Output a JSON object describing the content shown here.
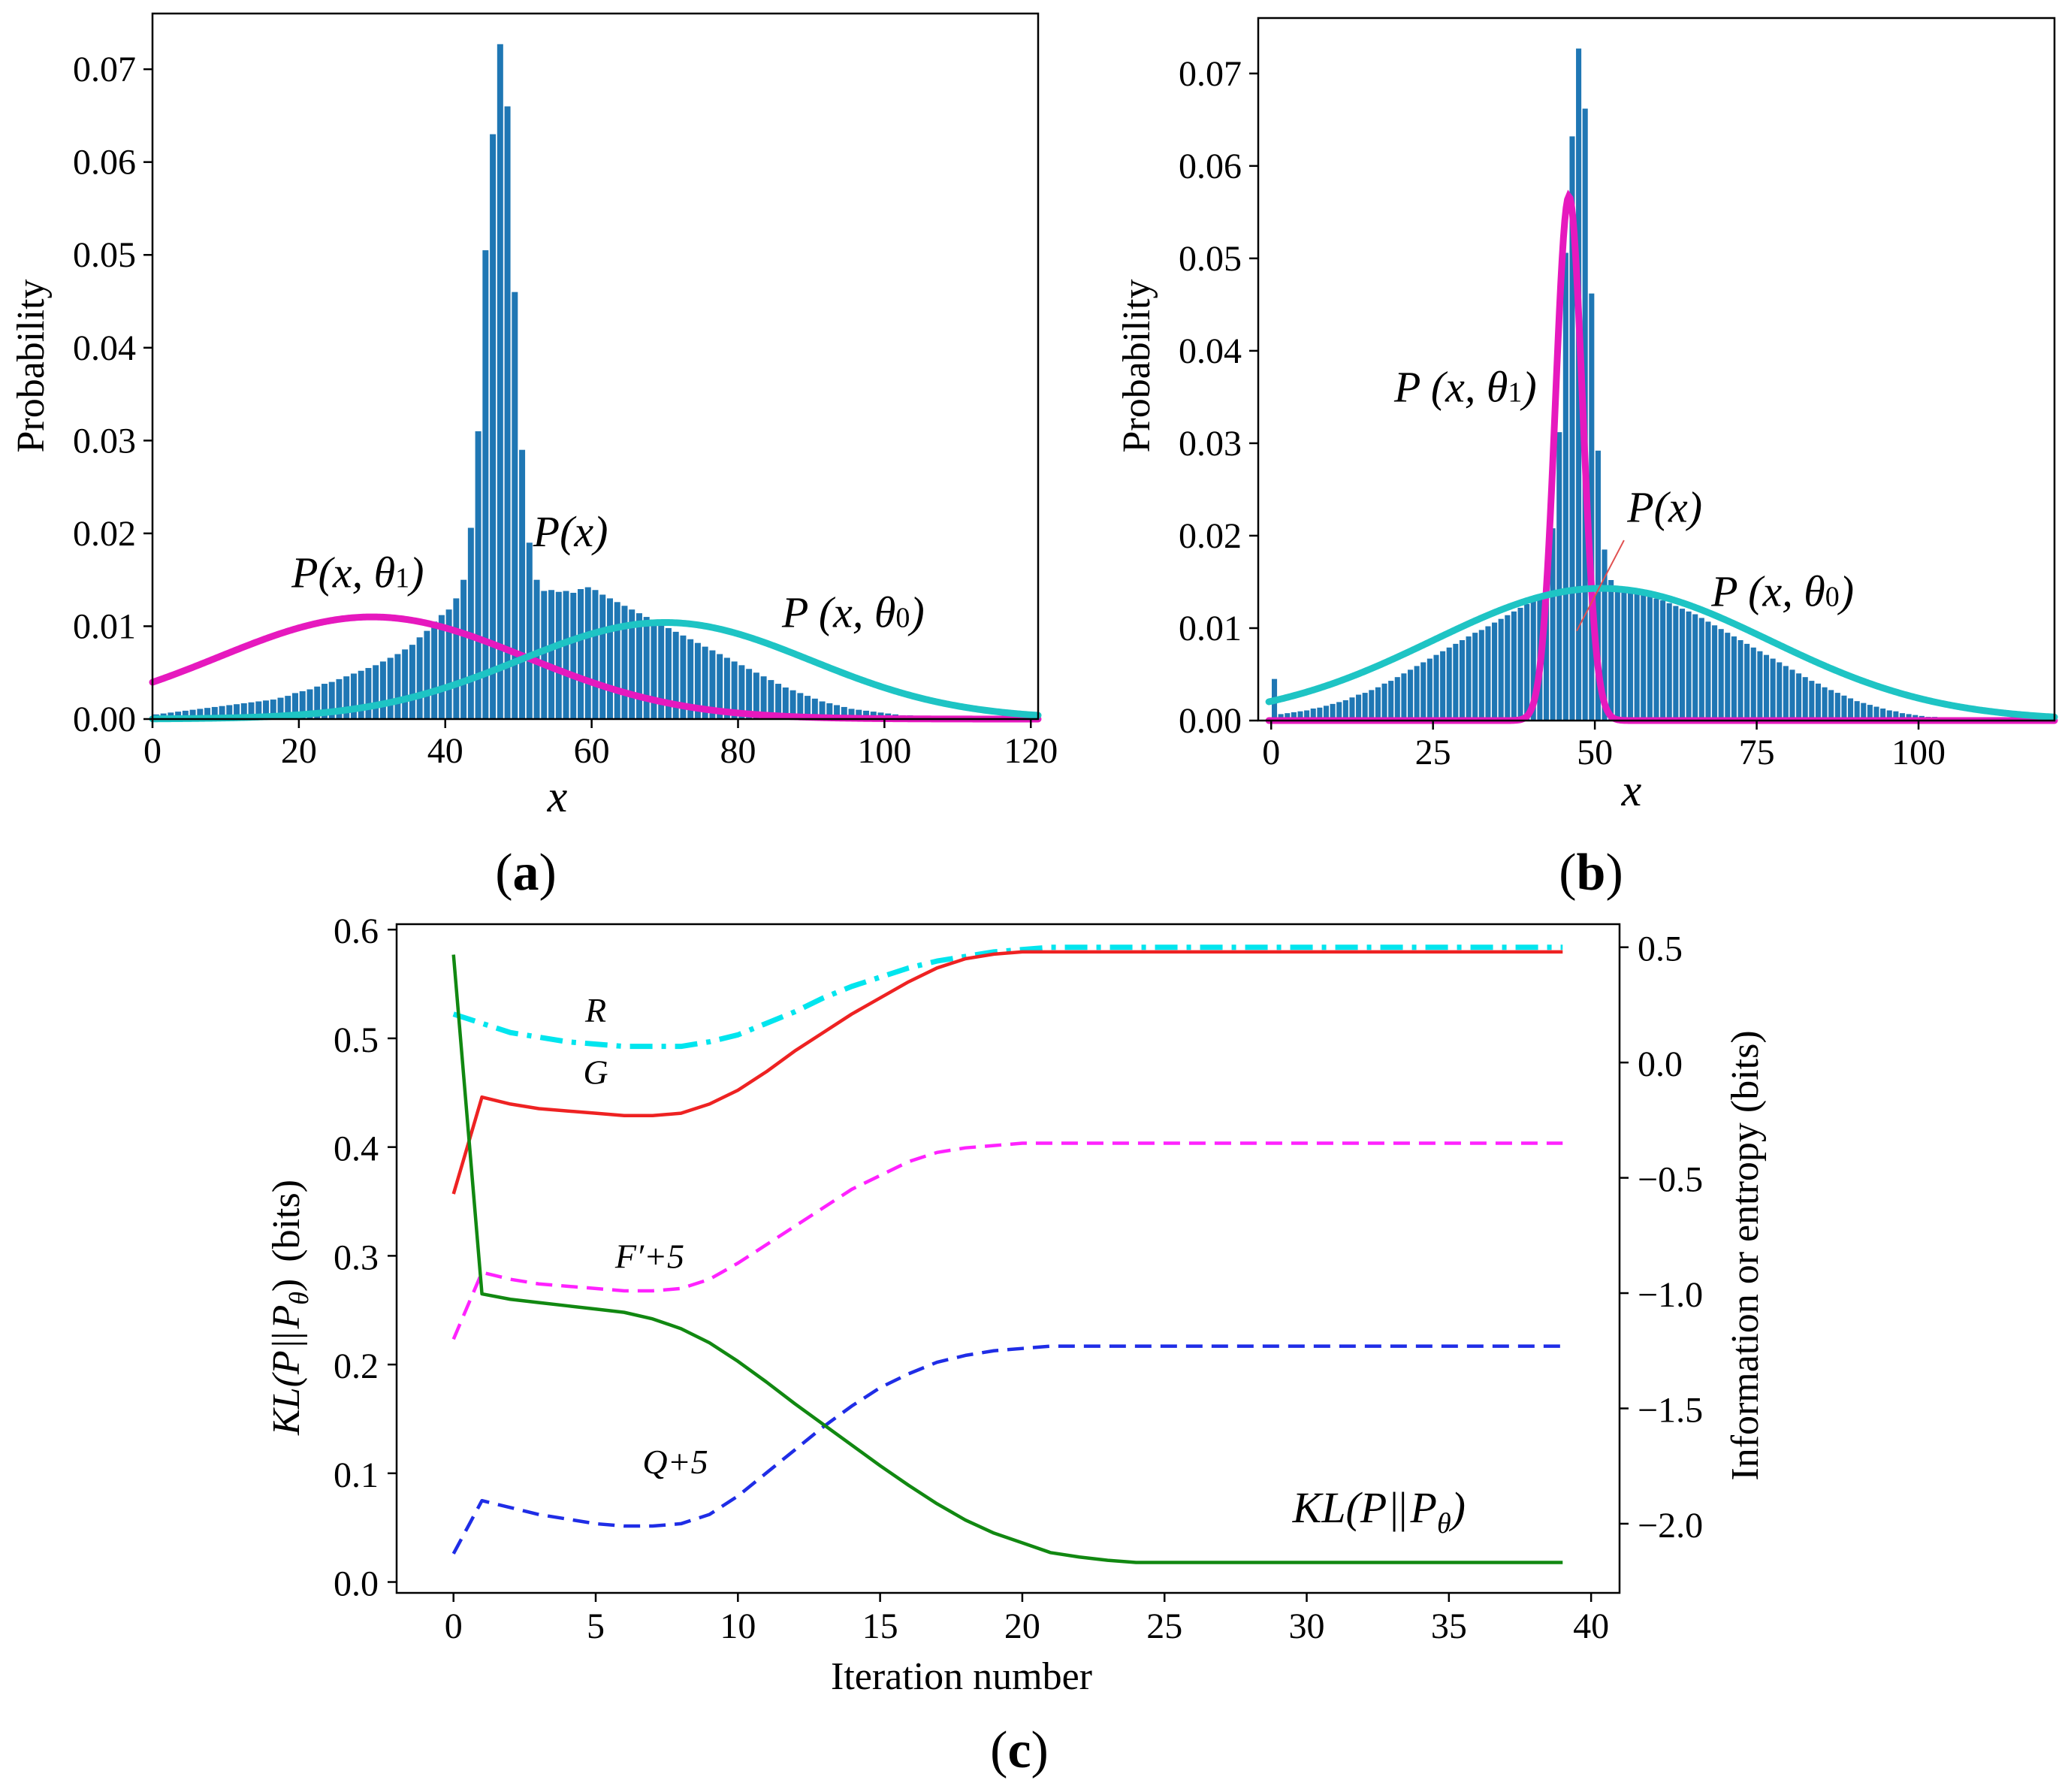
{
  "chart_data": [
    {
      "id": "a",
      "type": "bar",
      "panel_label": "(a)",
      "panel_label_parts": [
        "(",
        "a",
        ")"
      ],
      "xlabel": "x",
      "ylabel": "Probability",
      "xlim": [
        0,
        121
      ],
      "ylim": [
        0,
        0.076
      ],
      "xticks": [
        0,
        20,
        40,
        60,
        80,
        100,
        120
      ],
      "xtick_labels": [
        "0",
        "20",
        "40",
        "60",
        "80",
        "100",
        "120"
      ],
      "yticks": [
        0,
        0.01,
        0.02,
        0.03,
        0.04,
        0.05,
        0.06,
        0.07
      ],
      "ytick_labels": [
        "0.00",
        "0.01",
        "0.02",
        "0.03",
        "0.04",
        "0.05",
        "0.06",
        "0.07"
      ],
      "bar_color": "#1f77b4",
      "bars": {
        "x": [
          0,
          1,
          2,
          3,
          4,
          5,
          6,
          7,
          8,
          9,
          10,
          11,
          12,
          13,
          14,
          15,
          16,
          17,
          18,
          19,
          20,
          21,
          22,
          23,
          24,
          25,
          26,
          27,
          28,
          29,
          30,
          31,
          32,
          33,
          34,
          35,
          36,
          37,
          38,
          39,
          40,
          41,
          42,
          43,
          44,
          45,
          46,
          47,
          48,
          49,
          50,
          51,
          52,
          53,
          54,
          55,
          56,
          57,
          58,
          59,
          60,
          61,
          62,
          63,
          64,
          65,
          66,
          67,
          68,
          69,
          70,
          71,
          72,
          73,
          74,
          75,
          76,
          77,
          78,
          79,
          80,
          81,
          82,
          83,
          84,
          85,
          86,
          87,
          88,
          89,
          90,
          91,
          92,
          93,
          94,
          95,
          96,
          97,
          98,
          99,
          100,
          101,
          102,
          103,
          104,
          105,
          106,
          107,
          108,
          109,
          110,
          111,
          112,
          113,
          114,
          115,
          116,
          117,
          118,
          119,
          120
        ],
        "y": [
          0.0005,
          0.0006,
          0.0007,
          0.0008,
          0.0009,
          0.001,
          0.0011,
          0.0012,
          0.0013,
          0.0014,
          0.0015,
          0.0016,
          0.0017,
          0.0018,
          0.0019,
          0.002,
          0.0021,
          0.0023,
          0.0025,
          0.0028,
          0.003,
          0.0032,
          0.0035,
          0.0038,
          0.004,
          0.0043,
          0.0046,
          0.0049,
          0.0052,
          0.0055,
          0.0058,
          0.0062,
          0.0066,
          0.007,
          0.0075,
          0.008,
          0.0088,
          0.0095,
          0.0105,
          0.0112,
          0.0118,
          0.013,
          0.015,
          0.0206,
          0.031,
          0.0505,
          0.063,
          0.0727,
          0.066,
          0.046,
          0.029,
          0.019,
          0.015,
          0.0138,
          0.0139,
          0.0137,
          0.0138,
          0.0136,
          0.014,
          0.0142,
          0.0139,
          0.0134,
          0.013,
          0.0126,
          0.0122,
          0.0118,
          0.0114,
          0.011,
          0.0106,
          0.0102,
          0.0098,
          0.0094,
          0.009,
          0.0086,
          0.0082,
          0.0078,
          0.0074,
          0.007,
          0.0066,
          0.0062,
          0.0058,
          0.0054,
          0.005,
          0.0046,
          0.0042,
          0.0038,
          0.0034,
          0.0031,
          0.0028,
          0.0025,
          0.0022,
          0.0019,
          0.0017,
          0.0015,
          0.0013,
          0.0011,
          0.001,
          0.0009,
          0.0008,
          0.0007,
          0.0006,
          0.0005,
          0.0004,
          0.0004,
          0.0003,
          0.0003,
          0.0002,
          0.0002,
          0.0002,
          0.0001,
          0.0001,
          0.0001,
          0.0001,
          0.0001,
          0.0001,
          0.0001,
          0.0,
          0.0,
          0.0,
          0.0,
          0.0
        ]
      },
      "curves": [
        {
          "name": "P(x, θ1)",
          "color": "#e619be",
          "mu": 30,
          "sigma": 21,
          "peak": 0.011
        },
        {
          "name": "P(x, θ0)",
          "color": "#1ec4c4",
          "mu": 70,
          "sigma": 20,
          "peak": 0.0104
        }
      ],
      "annotations": [
        {
          "text": "P(x, θ1)",
          "x": 19,
          "y": 0.0142
        },
        {
          "text": "P(x)",
          "x": 52,
          "y": 0.0186
        },
        {
          "text": "P (x, θ0)",
          "x": 86,
          "y": 0.0099
        }
      ]
    },
    {
      "id": "b",
      "type": "bar",
      "panel_label": "(b)",
      "panel_label_parts": [
        "(",
        "b",
        ")"
      ],
      "xlabel": "x",
      "ylabel": "Probability",
      "xlim": [
        -2,
        121
      ],
      "ylim": [
        0,
        0.076
      ],
      "xticks": [
        0,
        25,
        50,
        75,
        100
      ],
      "xtick_labels": [
        "0",
        "25",
        "50",
        "75",
        "100"
      ],
      "yticks": [
        0,
        0.01,
        0.02,
        0.03,
        0.04,
        0.05,
        0.06,
        0.07
      ],
      "ytick_labels": [
        "0.00",
        "0.01",
        "0.02",
        "0.03",
        "0.04",
        "0.05",
        "0.06",
        "0.07"
      ],
      "bar_color": "#1f77b4",
      "bars": {
        "x": [
          0,
          1,
          2,
          3,
          4,
          5,
          6,
          7,
          8,
          9,
          10,
          11,
          12,
          13,
          14,
          15,
          16,
          17,
          18,
          19,
          20,
          21,
          22,
          23,
          24,
          25,
          26,
          27,
          28,
          29,
          30,
          31,
          32,
          33,
          34,
          35,
          36,
          37,
          38,
          39,
          40,
          41,
          42,
          43,
          44,
          45,
          46,
          47,
          48,
          49,
          50,
          51,
          52,
          53,
          54,
          55,
          56,
          57,
          58,
          59,
          60,
          61,
          62,
          63,
          64,
          65,
          66,
          67,
          68,
          69,
          70,
          71,
          72,
          73,
          74,
          75,
          76,
          77,
          78,
          79,
          80,
          81,
          82,
          83,
          84,
          85,
          86,
          87,
          88,
          89,
          90,
          91,
          92,
          93,
          94,
          95,
          96,
          97,
          98,
          99,
          100,
          101,
          102,
          103,
          104,
          105,
          106,
          107,
          108,
          109,
          110,
          111,
          112,
          113,
          114,
          115,
          116,
          117,
          118,
          119,
          120
        ],
        "y": [
          0.0045,
          0.0007,
          0.0008,
          0.0009,
          0.001,
          0.0011,
          0.0013,
          0.0014,
          0.0016,
          0.0018,
          0.002,
          0.0022,
          0.0025,
          0.0028,
          0.003,
          0.0033,
          0.0036,
          0.004,
          0.0043,
          0.0047,
          0.0051,
          0.0055,
          0.0059,
          0.0063,
          0.0067,
          0.0071,
          0.0075,
          0.0079,
          0.0083,
          0.0087,
          0.0091,
          0.0095,
          0.0098,
          0.0102,
          0.0106,
          0.011,
          0.0114,
          0.0118,
          0.0122,
          0.0126,
          0.013,
          0.0136,
          0.0146,
          0.0208,
          0.0312,
          0.0506,
          0.0632,
          0.0727,
          0.0662,
          0.0462,
          0.0292,
          0.0185,
          0.0152,
          0.0141,
          0.014,
          0.0139,
          0.0138,
          0.0136,
          0.0134,
          0.0132,
          0.013,
          0.0127,
          0.0124,
          0.0121,
          0.0118,
          0.0115,
          0.0111,
          0.0107,
          0.0103,
          0.0099,
          0.0095,
          0.0091,
          0.0087,
          0.0083,
          0.0079,
          0.0075,
          0.0071,
          0.0067,
          0.0063,
          0.0059,
          0.0055,
          0.0051,
          0.0047,
          0.0043,
          0.004,
          0.0036,
          0.0033,
          0.003,
          0.0027,
          0.0024,
          0.0021,
          0.0019,
          0.0017,
          0.0015,
          0.0013,
          0.0011,
          0.001,
          0.0008,
          0.0007,
          0.0006,
          0.0005,
          0.0004,
          0.0004,
          0.0003,
          0.0003,
          0.0002,
          0.0002,
          0.0002,
          0.0001,
          0.0001,
          0.0001,
          0.0001,
          0.0001,
          0.0001,
          0.0,
          0.0,
          0.0,
          0.0,
          0.0,
          0.0,
          0.0
        ]
      },
      "curves": [
        {
          "name": "P(x, θ1)",
          "color": "#e619be",
          "mu": 46,
          "sigma": 2.1,
          "peak": 0.0567
        },
        {
          "name": "P(x, θ0)",
          "color": "#1ec4c4",
          "mu": 51,
          "sigma": 26,
          "peak": 0.0143
        }
      ],
      "annotations": [
        {
          "text": "P (x, θ1)",
          "x": 19,
          "y": 0.0345
        },
        {
          "text": "P(x)",
          "x": 55,
          "y": 0.0215
        },
        {
          "text": "P (x, θ0)",
          "x": 68,
          "y": 0.0124
        }
      ]
    },
    {
      "id": "c",
      "type": "line",
      "panel_label": "(c)",
      "panel_label_parts": [
        "(",
        "c",
        ")"
      ],
      "xlabel": "Iteration number",
      "ylabel_left_parts": [
        "KL(P",
        "||",
        "P",
        "θ",
        ")",
        "(bits)"
      ],
      "ylabel_right": "Information or  entropy (bits)",
      "xlim": [
        -2,
        41
      ],
      "ylim_left": [
        -0.01,
        0.605
      ],
      "ylim_right": [
        -2.3,
        0.6
      ],
      "xticks": [
        0,
        5,
        10,
        15,
        20,
        25,
        30,
        35,
        40
      ],
      "xtick_labels": [
        "0",
        "5",
        "10",
        "15",
        "20",
        "25",
        "30",
        "35",
        "40"
      ],
      "yticks_left": [
        0.0,
        0.1,
        0.2,
        0.3,
        0.4,
        0.5,
        0.6
      ],
      "ytick_labels_left": [
        "0.0",
        "0.1",
        "0.2",
        "0.3",
        "0.4",
        "0.5",
        "0.6"
      ],
      "yticks_right": [
        -2.0,
        -1.5,
        -1.0,
        -0.5,
        0.0,
        0.5
      ],
      "ytick_labels_right": [
        "−2.0",
        "−1.5",
        "−1.0",
        "−0.5",
        "0.0",
        "0.5"
      ],
      "x": [
        0,
        1,
        2,
        3,
        4,
        5,
        6,
        7,
        8,
        9,
        10,
        11,
        12,
        13,
        14,
        15,
        16,
        17,
        18,
        19,
        20,
        21,
        22,
        23,
        24,
        25,
        26,
        27,
        28,
        29,
        30,
        31,
        32,
        33,
        34,
        35,
        36,
        37,
        38,
        39
      ],
      "series": [
        {
          "name": "R",
          "axis": "right",
          "color": "#00e5ee",
          "style": "dashdot",
          "values": [
            0.21,
            0.17,
            0.13,
            0.11,
            0.09,
            0.08,
            0.07,
            0.07,
            0.07,
            0.09,
            0.12,
            0.17,
            0.22,
            0.28,
            0.33,
            0.37,
            0.41,
            0.44,
            0.46,
            0.48,
            0.49,
            0.5,
            0.5,
            0.5,
            0.5,
            0.5,
            0.5,
            0.5,
            0.5,
            0.5,
            0.5,
            0.5,
            0.5,
            0.5,
            0.5,
            0.5,
            0.5,
            0.5,
            0.5,
            0.5
          ]
        },
        {
          "name": "G",
          "axis": "right",
          "color": "#ee2222",
          "style": "solid",
          "values": [
            -0.57,
            -0.15,
            -0.18,
            -0.2,
            -0.21,
            -0.22,
            -0.23,
            -0.23,
            -0.22,
            -0.18,
            -0.12,
            -0.04,
            0.05,
            0.13,
            0.21,
            0.28,
            0.35,
            0.41,
            0.45,
            0.47,
            0.48,
            0.48,
            0.48,
            0.48,
            0.48,
            0.48,
            0.48,
            0.48,
            0.48,
            0.48,
            0.48,
            0.48,
            0.48,
            0.48,
            0.48,
            0.48,
            0.48,
            0.48,
            0.48,
            0.48
          ]
        },
        {
          "name": "F′+5",
          "axis": "right",
          "color": "#ff22ff",
          "style": "dashed",
          "values": [
            -1.2,
            -0.91,
            -0.94,
            -0.96,
            -0.97,
            -0.98,
            -0.99,
            -0.99,
            -0.98,
            -0.94,
            -0.87,
            -0.79,
            -0.71,
            -0.63,
            -0.55,
            -0.49,
            -0.43,
            -0.39,
            -0.37,
            -0.36,
            -0.35,
            -0.35,
            -0.35,
            -0.35,
            -0.35,
            -0.35,
            -0.35,
            -0.35,
            -0.35,
            -0.35,
            -0.35,
            -0.35,
            -0.35,
            -0.35,
            -0.35,
            -0.35,
            -0.35,
            -0.35,
            -0.35,
            -0.35
          ]
        },
        {
          "name": "Q+5",
          "axis": "right",
          "color": "#1f2de6",
          "style": "dashed",
          "values": [
            -2.13,
            -1.9,
            -1.93,
            -1.96,
            -1.98,
            -2.0,
            -2.01,
            -2.01,
            -2.0,
            -1.96,
            -1.88,
            -1.78,
            -1.68,
            -1.58,
            -1.49,
            -1.41,
            -1.35,
            -1.3,
            -1.27,
            -1.25,
            -1.24,
            -1.23,
            -1.23,
            -1.23,
            -1.23,
            -1.23,
            -1.23,
            -1.23,
            -1.23,
            -1.23,
            -1.23,
            -1.23,
            -1.23,
            -1.23,
            -1.23,
            -1.23,
            -1.23,
            -1.23,
            -1.23,
            -1.23
          ]
        },
        {
          "name": "KL(P||Pθ)",
          "axis": "left",
          "color": "#118811",
          "style": "solid",
          "values": [
            0.577,
            0.265,
            0.26,
            0.257,
            0.254,
            0.251,
            0.248,
            0.242,
            0.233,
            0.22,
            0.203,
            0.184,
            0.164,
            0.145,
            0.126,
            0.107,
            0.089,
            0.072,
            0.057,
            0.045,
            0.036,
            0.027,
            0.023,
            0.02,
            0.018,
            0.018,
            0.018,
            0.018,
            0.018,
            0.018,
            0.018,
            0.018,
            0.018,
            0.018,
            0.018,
            0.018,
            0.018,
            0.018,
            0.018,
            0.018
          ]
        }
      ],
      "annotations": [
        {
          "id": "R",
          "text": "R",
          "x": 5.0,
          "axis": "left",
          "y": 0.515
        },
        {
          "id": "G",
          "text": "G",
          "x": 5.0,
          "axis": "left",
          "y": 0.458
        },
        {
          "id": "F",
          "text": "F′+5",
          "x": 6.9,
          "axis": "left",
          "y": 0.289
        },
        {
          "id": "Q",
          "text": "Q+5",
          "x": 7.8,
          "axis": "left",
          "y": 0.1
        },
        {
          "id": "KL",
          "parts": [
            "KL(P",
            "||",
            "P",
            "θ",
            ")"
          ],
          "x": 29.5,
          "axis": "left",
          "y": 0.055
        }
      ]
    }
  ]
}
